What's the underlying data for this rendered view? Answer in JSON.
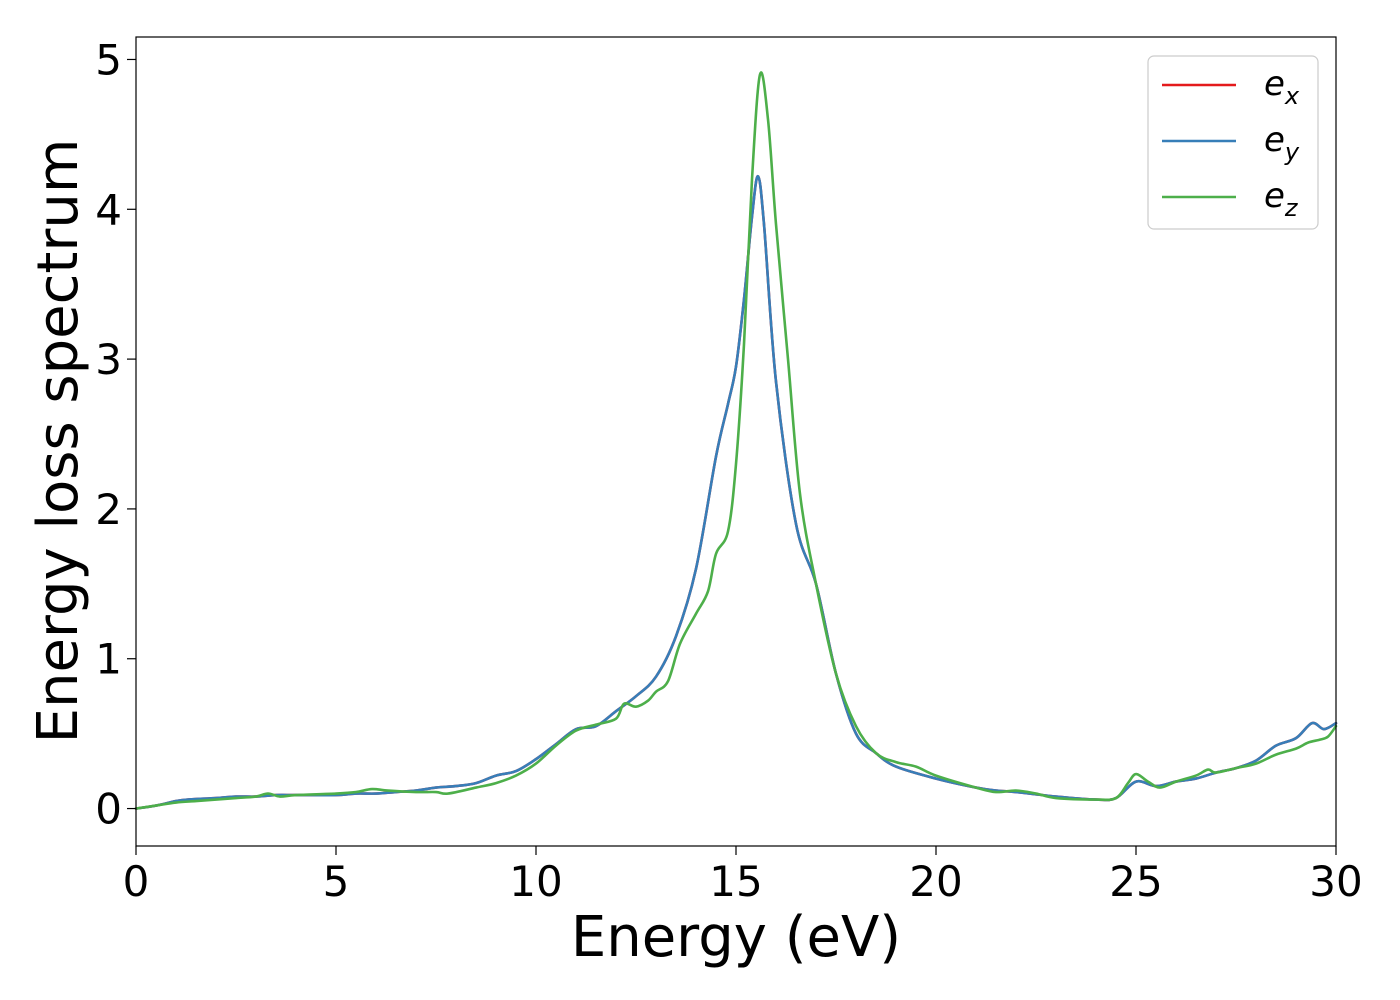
{
  "chart_data": {
    "type": "line",
    "title": "",
    "xlabel": "Energy (eV)",
    "ylabel": "Energy loss spectrum",
    "xlim": [
      0,
      30
    ],
    "ylim": [
      -0.25,
      5.15
    ],
    "xticks": [
      0,
      5,
      10,
      15,
      20,
      25,
      30
    ],
    "yticks": [
      0,
      1,
      2,
      3,
      4,
      5
    ],
    "grid": false,
    "legend_position": "top-right",
    "series": [
      {
        "name": "e_x",
        "label_base": "e",
        "label_sub": "x",
        "color": "#e41a1c",
        "x": [
          0,
          0.5,
          1.0,
          1.3,
          2.0,
          2.5,
          3.0,
          3.5,
          4.0,
          5.0,
          5.5,
          6.0,
          6.5,
          7.0,
          7.5,
          8.0,
          8.5,
          9.0,
          9.5,
          10.0,
          10.5,
          11.0,
          11.5,
          12.0,
          12.5,
          13.0,
          13.5,
          14.0,
          14.5,
          14.8,
          15.0,
          15.2,
          15.4,
          15.55,
          15.7,
          16.0,
          16.5,
          17.0,
          17.5,
          18.0,
          18.5,
          19.0,
          20.0,
          21.0,
          21.5,
          22.0,
          23.0,
          24.0,
          24.5,
          25.0,
          25.5,
          26.0,
          26.5,
          27.0,
          27.5,
          28.0,
          28.5,
          29.0,
          29.4,
          29.7,
          30.0
        ],
        "y": [
          0.0,
          0.02,
          0.05,
          0.06,
          0.07,
          0.08,
          0.08,
          0.09,
          0.09,
          0.09,
          0.1,
          0.1,
          0.11,
          0.12,
          0.14,
          0.15,
          0.17,
          0.22,
          0.25,
          0.33,
          0.43,
          0.53,
          0.55,
          0.65,
          0.75,
          0.88,
          1.15,
          1.6,
          2.35,
          2.7,
          2.95,
          3.4,
          3.95,
          4.22,
          3.9,
          2.85,
          1.9,
          1.5,
          0.9,
          0.5,
          0.37,
          0.28,
          0.2,
          0.14,
          0.12,
          0.11,
          0.08,
          0.06,
          0.07,
          0.18,
          0.15,
          0.18,
          0.2,
          0.24,
          0.27,
          0.32,
          0.42,
          0.47,
          0.57,
          0.53,
          0.57
        ]
      },
      {
        "name": "e_y",
        "label_base": "e",
        "label_sub": "y",
        "color": "#377eb8",
        "x": [
          0,
          0.5,
          1.0,
          1.3,
          2.0,
          2.5,
          3.0,
          3.5,
          4.0,
          5.0,
          5.5,
          6.0,
          6.5,
          7.0,
          7.5,
          8.0,
          8.5,
          9.0,
          9.5,
          10.0,
          10.5,
          11.0,
          11.5,
          12.0,
          12.5,
          13.0,
          13.5,
          14.0,
          14.5,
          14.8,
          15.0,
          15.2,
          15.4,
          15.55,
          15.7,
          16.0,
          16.5,
          17.0,
          17.5,
          18.0,
          18.5,
          19.0,
          20.0,
          21.0,
          21.5,
          22.0,
          23.0,
          24.0,
          24.5,
          25.0,
          25.5,
          26.0,
          26.5,
          27.0,
          27.5,
          28.0,
          28.5,
          29.0,
          29.4,
          29.7,
          30.0
        ],
        "y": [
          0.0,
          0.02,
          0.05,
          0.06,
          0.07,
          0.08,
          0.08,
          0.09,
          0.09,
          0.09,
          0.1,
          0.1,
          0.11,
          0.12,
          0.14,
          0.15,
          0.17,
          0.22,
          0.25,
          0.33,
          0.43,
          0.53,
          0.55,
          0.65,
          0.75,
          0.88,
          1.15,
          1.6,
          2.35,
          2.7,
          2.95,
          3.4,
          3.95,
          4.22,
          3.9,
          2.85,
          1.9,
          1.5,
          0.9,
          0.5,
          0.37,
          0.28,
          0.2,
          0.14,
          0.12,
          0.11,
          0.08,
          0.06,
          0.07,
          0.18,
          0.15,
          0.18,
          0.2,
          0.24,
          0.27,
          0.32,
          0.42,
          0.47,
          0.57,
          0.53,
          0.57
        ]
      },
      {
        "name": "e_z",
        "label_base": "e",
        "label_sub": "z",
        "color": "#4daf4a",
        "x": [
          0,
          0.5,
          1.0,
          1.5,
          2.0,
          2.5,
          3.0,
          3.3,
          3.6,
          4.0,
          5.0,
          5.5,
          5.9,
          6.3,
          7.0,
          7.5,
          7.8,
          8.5,
          9.0,
          9.5,
          10.0,
          10.5,
          11.0,
          11.5,
          12.0,
          12.2,
          12.5,
          12.8,
          13.0,
          13.3,
          13.6,
          14.0,
          14.3,
          14.5,
          14.8,
          15.0,
          15.2,
          15.4,
          15.6,
          15.8,
          16.0,
          16.3,
          16.6,
          17.0,
          17.5,
          18.0,
          18.5,
          19.0,
          19.5,
          20.0,
          21.0,
          21.5,
          22.0,
          22.5,
          23.0,
          24.0,
          24.5,
          24.8,
          25.0,
          25.3,
          25.6,
          26.0,
          26.5,
          26.8,
          27.0,
          27.5,
          28.0,
          28.5,
          29.0,
          29.3,
          29.6,
          29.8,
          30.0
        ],
        "y": [
          0.0,
          0.02,
          0.04,
          0.05,
          0.06,
          0.07,
          0.08,
          0.1,
          0.08,
          0.09,
          0.1,
          0.11,
          0.13,
          0.12,
          0.11,
          0.11,
          0.1,
          0.14,
          0.17,
          0.22,
          0.3,
          0.42,
          0.52,
          0.56,
          0.6,
          0.7,
          0.68,
          0.72,
          0.78,
          0.85,
          1.1,
          1.3,
          1.45,
          1.7,
          1.85,
          2.3,
          3.1,
          4.2,
          4.9,
          4.6,
          3.9,
          3.0,
          2.1,
          1.5,
          0.9,
          0.55,
          0.37,
          0.31,
          0.28,
          0.22,
          0.14,
          0.11,
          0.12,
          0.1,
          0.07,
          0.06,
          0.07,
          0.17,
          0.23,
          0.18,
          0.14,
          0.18,
          0.22,
          0.26,
          0.24,
          0.27,
          0.3,
          0.36,
          0.4,
          0.44,
          0.46,
          0.48,
          0.55
        ]
      }
    ]
  }
}
